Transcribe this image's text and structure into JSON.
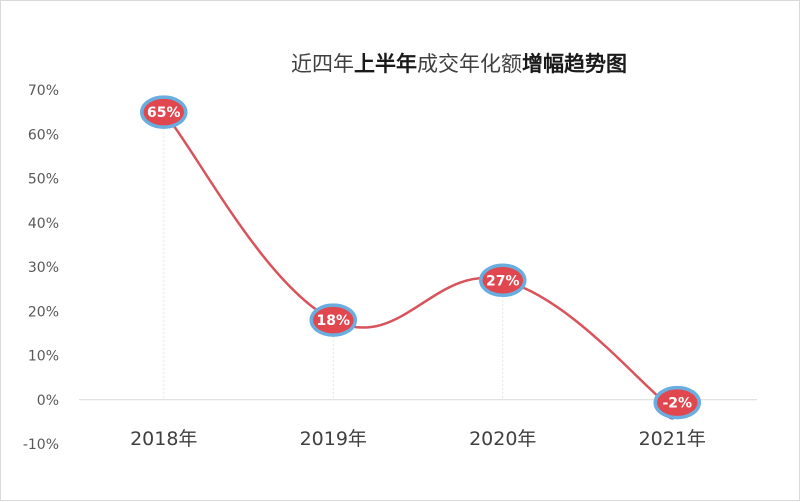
{
  "chart_data": {
    "type": "line",
    "title_parts": [
      {
        "text": "近四年",
        "bold": false
      },
      {
        "text": "上半年",
        "bold": true
      },
      {
        "text": "成交年化额",
        "bold": false
      },
      {
        "text": "增幅趋势图",
        "bold": true
      }
    ],
    "categories": [
      "2018年",
      "2019年",
      "2020年",
      "2021年"
    ],
    "values": [
      65,
      18,
      27,
      -2
    ],
    "data_labels": [
      "65%",
      "18%",
      "27%",
      "-2%"
    ],
    "y_ticks": [
      -10,
      0,
      10,
      20,
      30,
      40,
      50,
      60,
      70
    ],
    "y_tick_labels": [
      "-10%",
      "0%",
      "10%",
      "20%",
      "30%",
      "40%",
      "50%",
      "60%",
      "70%"
    ],
    "ylim": [
      -10,
      70
    ],
    "smooth": true,
    "grid": false,
    "legend": "none",
    "colors": {
      "line": "#d9535a",
      "marker_fill": "#e0474f",
      "marker_border": "#6aaee0",
      "last_marker": "#7a4b9c",
      "axis": "#d9d9d9"
    }
  }
}
